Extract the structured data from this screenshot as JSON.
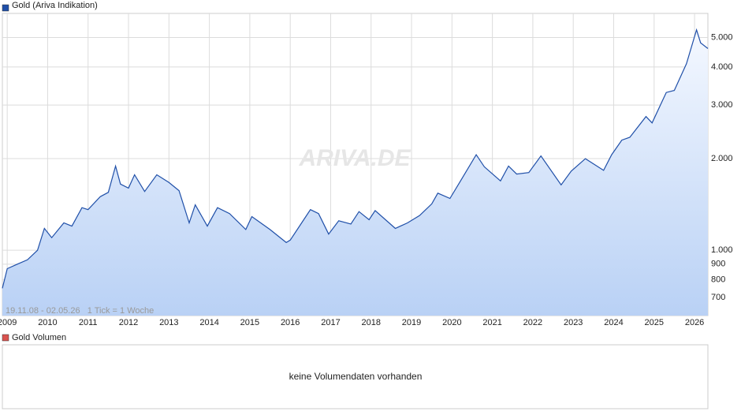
{
  "chart_data": {
    "type": "area",
    "log_scale": true,
    "grid": true,
    "series": [
      {
        "name": "Gold (Ariva Indikation)",
        "color": "#1f4fa8",
        "values": [
          750,
          870,
          900,
          930,
          1000,
          1180,
          1100,
          1230,
          1200,
          1380,
          1360,
          1500,
          1550,
          1890,
          1650,
          1600,
          1770,
          1560,
          1770,
          1670,
          1570,
          1230,
          1410,
          1200,
          1380,
          1320,
          1170,
          1290,
          1170,
          1060,
          1080,
          1360,
          1320,
          1130,
          1250,
          1220,
          1340,
          1260,
          1350,
          1180,
          1230,
          1300,
          1420,
          1540,
          1480,
          1680,
          2060,
          1880,
          1690,
          1890,
          1780,
          1800,
          2040,
          1640,
          1820,
          2000,
          1830,
          2060,
          2300,
          2350,
          2750,
          2620,
          3300,
          3350,
          4100,
          5300,
          4800,
          4600
        ]
      }
    ],
    "x": [
      2008.88,
      2009.0,
      2009.25,
      2009.5,
      2009.75,
      2009.92,
      2010.1,
      2010.4,
      2010.6,
      2010.85,
      2011.0,
      2011.3,
      2011.5,
      2011.68,
      2011.8,
      2012.0,
      2012.15,
      2012.4,
      2012.7,
      2013.0,
      2013.25,
      2013.5,
      2013.65,
      2013.95,
      2014.2,
      2014.5,
      2014.9,
      2015.05,
      2015.5,
      2015.9,
      2016.0,
      2016.5,
      2016.7,
      2016.95,
      2017.2,
      2017.5,
      2017.7,
      2017.95,
      2018.1,
      2018.6,
      2018.9,
      2019.2,
      2019.5,
      2019.65,
      2019.95,
      2020.2,
      2020.6,
      2020.8,
      2021.2,
      2021.4,
      2021.6,
      2021.9,
      2022.2,
      2022.7,
      2022.95,
      2023.3,
      2023.75,
      2023.95,
      2024.2,
      2024.4,
      2024.8,
      2024.95,
      2025.3,
      2025.5,
      2025.8,
      2026.05,
      2026.15,
      2026.33
    ],
    "xlim": [
      2008.88,
      2026.33
    ],
    "xticks": [
      2009,
      2010,
      2011,
      2012,
      2013,
      2014,
      2015,
      2016,
      2017,
      2018,
      2019,
      2020,
      2021,
      2022,
      2023,
      2024,
      2025,
      2026
    ],
    "ylim": [
      610,
      6000
    ],
    "yticks": [
      700,
      800,
      900,
      {
        "value": 1000,
        "label": "1.000"
      },
      {
        "value": 2000,
        "label": "2.000"
      },
      {
        "value": 3000,
        "label": "3.000"
      },
      {
        "value": 4000,
        "label": "4.000"
      },
      {
        "value": 5000,
        "label": "5.000"
      }
    ],
    "watermark": "ARIVA.DE",
    "annotation": "19.11.08 - 02.05.26   1 Tick = 1 Woche"
  },
  "volume_panel": {
    "title": "Gold Volumen",
    "message": "keine Volumendaten vorhanden"
  }
}
